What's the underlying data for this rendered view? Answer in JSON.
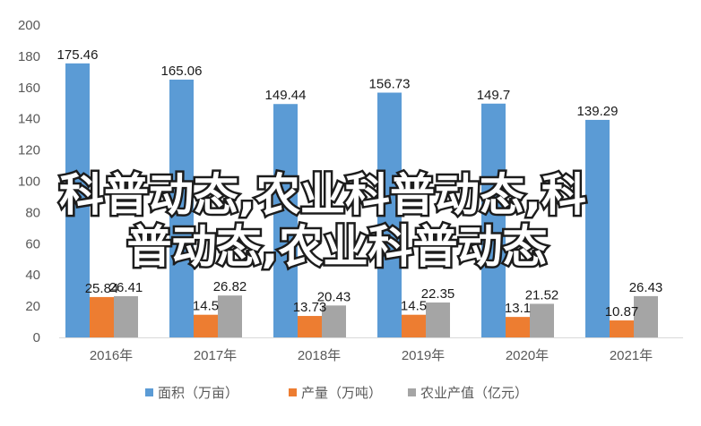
{
  "chart_data": {
    "type": "bar",
    "categories": [
      "2016年",
      "2017年",
      "2018年",
      "2019年",
      "2020年",
      "2021年"
    ],
    "series": [
      {
        "name": "面积（万亩）",
        "values": [
          175.46,
          165.06,
          149.44,
          156.73,
          149.7,
          139.29
        ],
        "labels": [
          "175.46",
          "165.06",
          "149.44",
          "156.73",
          "149.7",
          "139.29"
        ]
      },
      {
        "name": "产量（万吨）",
        "values": [
          25.84,
          14.5,
          13.73,
          14.5,
          13.1,
          10.87
        ],
        "labels": [
          "25.84",
          "14.5",
          "13.73",
          "14.5",
          "13.1",
          "10.87"
        ]
      },
      {
        "name": "农业产值（亿元）",
        "values": [
          26.41,
          26.82,
          20.43,
          22.35,
          21.52,
          26.43
        ],
        "labels": [
          "26.41",
          "26.82",
          "20.43",
          "22.35",
          "21.52",
          "26.43"
        ]
      }
    ],
    "ylim": [
      0,
      200
    ],
    "yticks": [
      0,
      20,
      40,
      60,
      80,
      100,
      120,
      140,
      160,
      180,
      200
    ],
    "ytick_labels": [
      "0",
      "20",
      "40",
      "60",
      "80",
      "100",
      "120",
      "140",
      "160",
      "180",
      "200"
    ],
    "grid": false,
    "legend_position": "bottom",
    "colors": [
      "#5b9bd5",
      "#ed7d31",
      "#a5a5a5"
    ],
    "axis_color": "#d9d9d9"
  },
  "overlay": {
    "line1": "科普动态,农业科普动态,科",
    "line2": "普动态,农业科普动态"
  }
}
